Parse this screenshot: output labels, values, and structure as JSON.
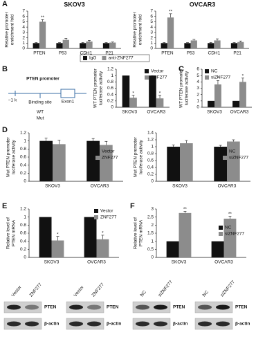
{
  "chart_data": [
    {
      "type": "bar",
      "panel": "A",
      "title": "SKOV3",
      "ylabel": [
        "Relative promoter",
        "enrichment fold"
      ],
      "legend": "bottom",
      "categories": [
        "PTEN",
        "P53",
        "CDH1",
        "P21"
      ],
      "ylim": [
        0,
        7
      ],
      "yticks": [
        0,
        1,
        2,
        3,
        4,
        5,
        6,
        7
      ],
      "series": [
        {
          "name": "IgG",
          "color": "#111111",
          "values": [
            1,
            1,
            1,
            1
          ],
          "errors": [
            0.1,
            0.1,
            0.1,
            0.1
          ]
        },
        {
          "name": "anti-ZNF277",
          "color": "#8c8c8c",
          "values": [
            5.0,
            1.6,
            1.3,
            1.1
          ],
          "errors": [
            0.4,
            0.3,
            0.2,
            0.1
          ],
          "significance": [
            "**",
            null,
            null,
            null
          ]
        }
      ]
    },
    {
      "type": "bar",
      "title": "OVCAR3",
      "ylabel": [
        "Relative promoter",
        "enrichment fold"
      ],
      "categories": [
        "PTEN",
        "P53",
        "CDH1",
        "P21"
      ],
      "ylim": [
        0,
        7
      ],
      "yticks": [
        0,
        1,
        2,
        3,
        4,
        5,
        6,
        7
      ],
      "series": [
        {
          "name": "IgG",
          "color": "#111111",
          "values": [
            1,
            1,
            1,
            1
          ],
          "errors": [
            0.1,
            0.1,
            0.1,
            0.1
          ]
        },
        {
          "name": "anti-ZNF277",
          "color": "#8c8c8c",
          "values": [
            5.8,
            1.5,
            1.5,
            1.2
          ],
          "errors": [
            0.7,
            0.2,
            0.3,
            0.2
          ],
          "significance": [
            "**",
            null,
            null,
            null
          ]
        }
      ]
    },
    {
      "type": "bar",
      "ylabel": [
        "WT PTEN promoter",
        "luciferase activity"
      ],
      "legend": "upper right",
      "categories": [
        "SKOV3",
        "OVCAR3"
      ],
      "ylim": [
        0,
        1.2
      ],
      "yticks": [
        0,
        0.2,
        0.4,
        0.6,
        0.8,
        1,
        1.2
      ],
      "series": [
        {
          "name": "Vector",
          "color": "#111111",
          "values": [
            1,
            1
          ]
        },
        {
          "name": "ZNF277",
          "color": "#8c8c8c",
          "values": [
            0.3,
            0.28
          ],
          "errors": [
            0.08,
            0.1
          ],
          "significance": [
            "*",
            "*"
          ]
        }
      ]
    },
    {
      "type": "bar",
      "panel": "C",
      "ylabel": [
        "WT PTEN promoter",
        "luciferase activity"
      ],
      "legend": "upper left",
      "categories": [
        "SKOV3",
        "OVCAR3"
      ],
      "ylim": [
        0,
        6
      ],
      "yticks": [
        0,
        1,
        2,
        3,
        4,
        5,
        6
      ],
      "series": [
        {
          "name": "NC",
          "color": "#111111",
          "values": [
            1,
            1
          ]
        },
        {
          "name": "siZNF277",
          "color": "#8c8c8c",
          "values": [
            3.6,
            4.0
          ],
          "errors": [
            0.6,
            0.6
          ],
          "significance": [
            "*",
            "*"
          ]
        }
      ]
    },
    {
      "type": "bar",
      "panel": "D",
      "ylabel": [
        "Mut PTEN promoter",
        "luciferase activity"
      ],
      "legend": "center right",
      "categories": [
        "SKOV3",
        "OVCAR3"
      ],
      "ylim": [
        0,
        1.2
      ],
      "yticks": [
        0,
        0.2,
        0.4,
        0.6,
        0.8,
        1,
        1.2
      ],
      "series": [
        {
          "name": "Vector",
          "color": "#111111",
          "values": [
            1,
            1
          ],
          "errors": [
            0.07,
            0.06
          ]
        },
        {
          "name": "ZNF277",
          "color": "#8c8c8c",
          "values": [
            0.92,
            0.9
          ],
          "errors": [
            0.1,
            0.09
          ]
        }
      ]
    },
    {
      "type": "bar",
      "ylabel": [
        "Mut PTEN promoter",
        "luciferase activity"
      ],
      "legend": "center right",
      "categories": [
        "SKOV3",
        "OVCAR3"
      ],
      "ylim": [
        0,
        1.4
      ],
      "yticks": [
        0,
        0.2,
        0.4,
        0.6,
        0.8,
        1,
        1.2,
        1.4
      ],
      "series": [
        {
          "name": "NC",
          "color": "#111111",
          "values": [
            1,
            1
          ],
          "errors": [
            0.05,
            0.04
          ]
        },
        {
          "name": "siZNF277",
          "color": "#8c8c8c",
          "values": [
            1.1,
            1.15
          ],
          "errors": [
            0.08,
            0.05
          ]
        }
      ]
    },
    {
      "type": "bar",
      "panel": "E",
      "ylabel": [
        "Relative level of",
        "PTEN mRNA"
      ],
      "legend": "upper right",
      "categories": [
        "SKOV3",
        "OVCAR3"
      ],
      "ylim": [
        0,
        1.2
      ],
      "yticks": [
        0,
        0.2,
        0.4,
        0.6,
        0.8,
        1,
        1.2
      ],
      "series": [
        {
          "name": "Vector",
          "color": "#111111",
          "values": [
            1,
            1
          ]
        },
        {
          "name": "ZNF277",
          "color": "#8c8c8c",
          "values": [
            0.42,
            0.45
          ],
          "errors": [
            0.1,
            0.1
          ],
          "significance": [
            "*",
            "*"
          ]
        }
      ]
    },
    {
      "type": "bar",
      "panel": "F",
      "ylabel": [
        "Relative level of",
        "PTEN mRNA"
      ],
      "legend": "center right",
      "categories": [
        "SKOV3",
        "OVCAR3"
      ],
      "ylim": [
        0,
        3
      ],
      "yticks": [
        0,
        0.5,
        1,
        1.5,
        2,
        2.5,
        3
      ],
      "series": [
        {
          "name": "NC",
          "color": "#111111",
          "values": [
            1,
            1
          ]
        },
        {
          "name": "siZNF277",
          "color": "#8c8c8c",
          "values": [
            2.75,
            2.4
          ],
          "errors": [
            0.1,
            0.15
          ],
          "significance": [
            "**",
            "**"
          ]
        }
      ]
    }
  ],
  "diagram": {
    "panel": "B",
    "title": "PTEN promoter",
    "start": "−1 k",
    "site": "Binding site",
    "exon": "Exon1",
    "variants": [
      "WT",
      "Mut"
    ]
  },
  "blots": [
    {
      "lanes": [
        "Vector",
        "ZNF277"
      ],
      "bands": [
        "PTEN",
        "β-actin"
      ]
    },
    {
      "lanes": [
        "Vector",
        "ZNF277"
      ],
      "bands": [
        "PTEN",
        "β-actin"
      ]
    },
    {
      "lanes": [
        "NC",
        "siZNF277"
      ],
      "bands": [
        "PTEN",
        "β-actin"
      ]
    },
    {
      "lanes": [
        "NC",
        "siZNF277"
      ],
      "bands": [
        "PTEN",
        "β-actin"
      ]
    }
  ]
}
